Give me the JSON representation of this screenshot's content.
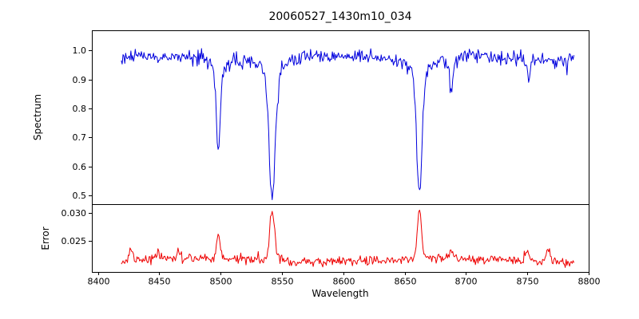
{
  "chart_data": {
    "type": "line",
    "title": "20060527_1430m10_034",
    "xlabel": "Wavelength",
    "xlim": [
      8395,
      8800
    ],
    "xticks": [
      8400,
      8450,
      8500,
      8550,
      8600,
      8650,
      8700,
      8750,
      8800
    ],
    "xticklabels": [
      "8400",
      "8450",
      "8500",
      "8550",
      "8600",
      "8650",
      "8700",
      "8750",
      "8800"
    ],
    "x_range_data": [
      8419,
      8788
    ],
    "n_points": 520,
    "panels": [
      {
        "name": "spectrum-panel",
        "ylabel": "Spectrum",
        "ylim": [
          0.47,
          1.07
        ],
        "yticks": [
          1.0,
          0.9,
          0.8,
          0.7,
          0.6,
          0.5
        ],
        "yticklabels": [
          "1.0",
          "0.9",
          "0.8",
          "0.7",
          "0.6",
          "0.5"
        ],
        "series": [
          {
            "name": "spectrum",
            "color": "#0000dd",
            "continuum": 0.975,
            "noise_sigma": 0.012,
            "absorption_lines": [
              {
                "center": 8498,
                "min_value": 0.665,
                "sigma": 1.6
              },
              {
                "center": 8542,
                "min_value": 0.495,
                "sigma": 2.4
              },
              {
                "center": 8662,
                "min_value": 0.515,
                "sigma": 2.1
              },
              {
                "center": 8688,
                "min_value": 0.875,
                "sigma": 1.1
              },
              {
                "center": 8751,
                "min_value": 0.905,
                "sigma": 1.0
              }
            ]
          }
        ]
      },
      {
        "name": "error-panel",
        "ylabel": "Error",
        "ylim": [
          0.0195,
          0.0315
        ],
        "yticks": [
          0.03,
          0.025
        ],
        "yticklabels": [
          "0.030",
          "0.025"
        ],
        "series": [
          {
            "name": "error",
            "color": "#ee0000",
            "baseline": 0.0215,
            "noise_sigma": 0.00042,
            "emission_peaks": [
              {
                "center": 8498,
                "max_value": 0.0265,
                "sigma": 1.2
              },
              {
                "center": 8542,
                "max_value": 0.0307,
                "sigma": 1.9
              },
              {
                "center": 8662,
                "max_value": 0.0305,
                "sigma": 1.5
              },
              {
                "center": 8427,
                "max_value": 0.0235,
                "sigma": 1.2
              },
              {
                "center": 8449,
                "max_value": 0.0231,
                "sigma": 1.0
              },
              {
                "center": 8466,
                "max_value": 0.0232,
                "sigma": 0.9
              },
              {
                "center": 8688,
                "max_value": 0.0229,
                "sigma": 1.0
              },
              {
                "center": 8750,
                "max_value": 0.0233,
                "sigma": 1.6
              },
              {
                "center": 8767,
                "max_value": 0.0234,
                "sigma": 1.1
              }
            ]
          }
        ]
      }
    ]
  }
}
